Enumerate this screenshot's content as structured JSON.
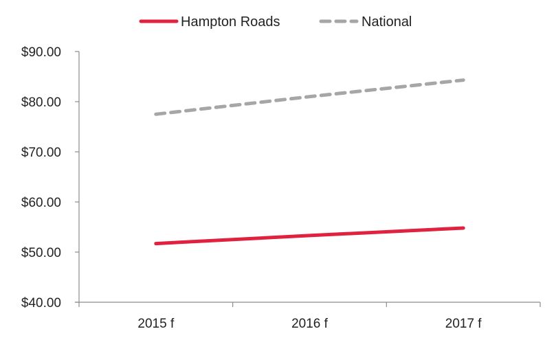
{
  "chart_data": {
    "type": "line",
    "categories": [
      "2015 f",
      "2016 f",
      "2017 f"
    ],
    "series": [
      {
        "name": "Hampton Roads",
        "values": [
          51.7,
          53.3,
          54.8
        ],
        "color": "#e0213f",
        "style": "solid"
      },
      {
        "name": "National",
        "values": [
          77.5,
          81.0,
          84.3
        ],
        "color": "#a6a6a6",
        "style": "dashed"
      }
    ],
    "yticks": [
      "$40.00",
      "$50.00",
      "$60.00",
      "$70.00",
      "$80.00",
      "$90.00"
    ],
    "ylim": [
      40,
      90
    ],
    "grid": false,
    "legend": "top-center"
  }
}
